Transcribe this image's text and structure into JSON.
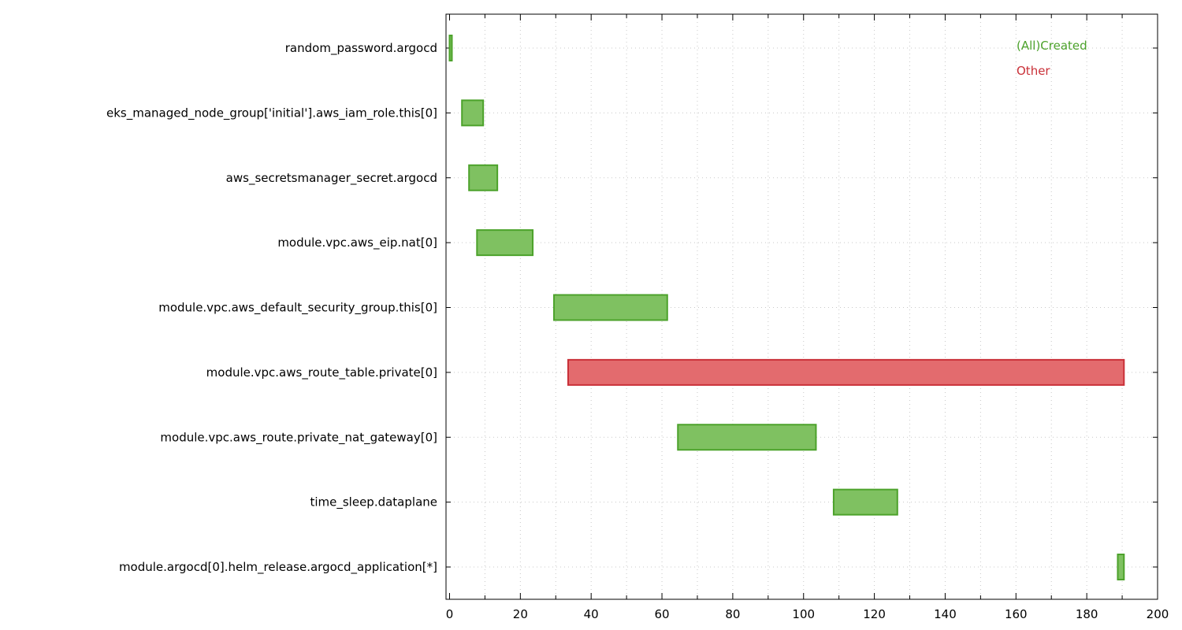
{
  "chart_data": {
    "type": "bar",
    "orientation": "horizontal-gantt",
    "title": "",
    "xlabel": "",
    "ylabel": "",
    "xlim": [
      -1,
      200
    ],
    "xticks": [
      0,
      20,
      40,
      60,
      80,
      100,
      120,
      140,
      160,
      180,
      200
    ],
    "grid": true,
    "legend_position": "top-right",
    "series": [
      {
        "name": "(All)Created",
        "color": "#7fc161",
        "stroke": "#4ca22b"
      },
      {
        "name": "Other",
        "color": "#e36b6e",
        "stroke": "#c93038"
      }
    ],
    "tasks": [
      {
        "label": "random_password.argocd",
        "start": 0,
        "end": 0.5,
        "series": 0
      },
      {
        "label": "eks_managed_node_group['initial'].aws_iam_role.this[0]",
        "start": 3.5,
        "end": 9.5,
        "series": 0
      },
      {
        "label": "aws_secretsmanager_secret.argocd",
        "start": 5.5,
        "end": 13.5,
        "series": 0
      },
      {
        "label": "module.vpc.aws_eip.nat[0]",
        "start": 7.75,
        "end": 23.5,
        "series": 0
      },
      {
        "label": "module.vpc.aws_default_security_group.this[0]",
        "start": 29.5,
        "end": 61.5,
        "series": 0
      },
      {
        "label": "module.vpc.aws_route_table.private[0]",
        "start": 33.5,
        "end": 190.5,
        "series": 1
      },
      {
        "label": "module.vpc.aws_route.private_nat_gateway[0]",
        "start": 64.5,
        "end": 103.5,
        "series": 0
      },
      {
        "label": "time_sleep.dataplane",
        "start": 108.5,
        "end": 126.5,
        "series": 0
      },
      {
        "label": "module.argocd[0].helm_release.argocd_application[*]",
        "start": 188.75,
        "end": 190.5,
        "series": 0
      }
    ]
  }
}
